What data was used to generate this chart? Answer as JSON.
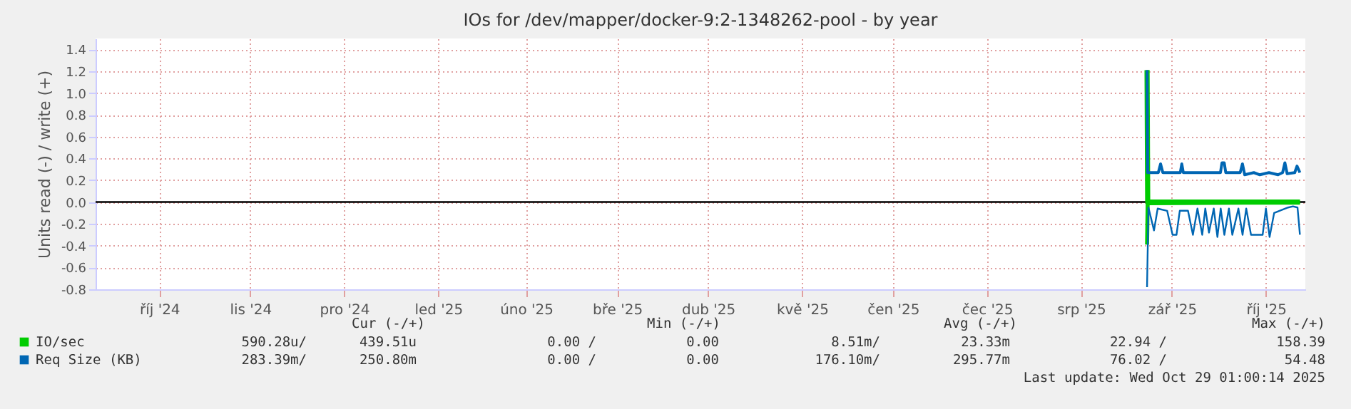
{
  "chart_data": {
    "type": "line",
    "title": "IOs for /dev/mapper/docker-9:2-1348262-pool - by year",
    "ylabel": "Units read (-) / write (+)",
    "xlim": [
      "2024-09-25",
      "2025-10-29"
    ],
    "xticks": [
      {
        "value": "2024-10-16",
        "label": "říj '24"
      },
      {
        "value": "2024-11-15",
        "label": "lis '24"
      },
      {
        "value": "2024-12-16",
        "label": "pro '24"
      },
      {
        "value": "2025-01-16",
        "label": "led '25"
      },
      {
        "value": "2025-02-14",
        "label": "úno '25"
      },
      {
        "value": "2025-03-16",
        "label": "bře '25"
      },
      {
        "value": "2025-04-15",
        "label": "dub '25"
      },
      {
        "value": "2025-05-16",
        "label": "kvě '25"
      },
      {
        "value": "2025-06-15",
        "label": "čen '25"
      },
      {
        "value": "2025-07-16",
        "label": "čec '25"
      },
      {
        "value": "2025-08-16",
        "label": "srp '25"
      },
      {
        "value": "2025-09-15",
        "label": "zář '25"
      },
      {
        "value": "2025-10-16",
        "label": "říj '25"
      }
    ],
    "ylim": [
      -0.8,
      1.5
    ],
    "yticks": [
      -0.8,
      -0.6,
      -0.4,
      -0.2,
      {
        "value": 0,
        "label": "0.0"
      },
      0.2,
      0.4,
      0.6,
      0.8,
      {
        "value": 1,
        "label": "1.0"
      },
      1.2,
      1.4
    ],
    "grid": true,
    "legend": "bottom",
    "line_style": "solid",
    "marker": "none",
    "ref_lines": [
      {
        "axis": "y",
        "value": 0,
        "color": "#000000"
      }
    ],
    "series": [
      {
        "name": "IO/sec",
        "color": "#00cc00",
        "x": [
          "2025-09-06T19:00",
          "2025-09-07T00:00",
          "2025-10-27T05:00"
        ],
        "values": [
          1.21,
          0.0,
          0.0
        ]
      },
      {
        "color": "#00cc00",
        "x": [
          "2025-09-06T19:00",
          "2025-09-07T00:00",
          "2025-10-27T05:00"
        ],
        "values": [
          -0.39,
          -0.01,
          0.0
        ]
      },
      {
        "name": "Req Size (KB)",
        "color": "#0066b3",
        "x": [
          "2025-09-06T19:00",
          "2025-09-07T00:00",
          "2025-09-10T12:00",
          "2025-09-11T06:00",
          "2025-09-12T00:00",
          "2025-09-17T18:00",
          "2025-09-18T06:00",
          "2025-09-18T18:00",
          "2025-10-01T00:00",
          "2025-10-01T12:00",
          "2025-10-02T06:00",
          "2025-10-02T18:00",
          "2025-10-07T12:00",
          "2025-10-08T06:00",
          "2025-10-09T00:00",
          "2025-10-12T00:00",
          "2025-10-14T00:00",
          "2025-10-17T00:00",
          "2025-10-20T00:00",
          "2025-10-21T12:00",
          "2025-10-22T06:00",
          "2025-10-23T00:00",
          "2025-10-25T12:00",
          "2025-10-26T06:00",
          "2025-10-27T05:00"
        ],
        "values": [
          1.21,
          0.27,
          0.27,
          0.35,
          0.27,
          0.27,
          0.35,
          0.27,
          0.27,
          0.36,
          0.36,
          0.27,
          0.27,
          0.35,
          0.25,
          0.27,
          0.25,
          0.27,
          0.25,
          0.27,
          0.36,
          0.26,
          0.27,
          0.33,
          0.27
        ]
      },
      {
        "color": "#0066b3",
        "x": [
          "2025-09-06T19:00",
          "2025-09-07T06:00",
          "2025-09-09T02:00",
          "2025-09-10T07:00",
          "2025-09-13T10:00",
          "2025-09-15T05:00",
          "2025-09-16T12:00",
          "2025-09-17T14:00",
          "2025-09-20T07:00",
          "2025-09-21T22:00",
          "2025-09-23T10:00",
          "2025-09-25T00:00",
          "2025-09-26T00:00",
          "2025-09-27T05:00",
          "2025-09-28T19:00",
          "2025-09-30T00:00",
          "2025-10-01T02:00",
          "2025-10-02T07:00",
          "2025-10-03T19:00",
          "2025-10-04T22:00",
          "2025-10-06T22:00",
          "2025-10-08T07:00",
          "2025-10-09T12:00",
          "2025-10-11T02:00",
          "2025-10-14T22:00",
          "2025-10-16T00:00",
          "2025-10-17T05:00",
          "2025-10-18T17:00",
          "2025-10-23T07:00",
          "2025-10-24T22:00",
          "2025-10-26T10:00",
          "2025-10-27T05:00"
        ],
        "values": [
          -0.78,
          -0.05,
          -0.26,
          -0.06,
          -0.08,
          -0.3,
          -0.3,
          -0.08,
          -0.08,
          -0.3,
          -0.06,
          -0.3,
          -0.06,
          -0.28,
          -0.06,
          -0.32,
          -0.06,
          -0.3,
          -0.06,
          -0.3,
          -0.06,
          -0.3,
          -0.06,
          -0.3,
          -0.3,
          -0.06,
          -0.32,
          -0.1,
          -0.05,
          -0.04,
          -0.05,
          -0.3
        ]
      }
    ],
    "annotations": [
      "Cur (-/+)",
      "Min (-/+)",
      "Avg (-/+)",
      "Max (-/+)",
      "590.28u/",
      "439.51u",
      "0.00 /",
      "0.00",
      "8.51m/",
      "23.33m",
      "22.94 /",
      "158.39",
      "283.39m/",
      "250.80m",
      "0.00 /",
      "0.00",
      "176.10m/",
      "295.77m",
      "76.02 /",
      "54.48",
      "Last update: Wed Oct 29 01:00:14 2025"
    ]
  }
}
